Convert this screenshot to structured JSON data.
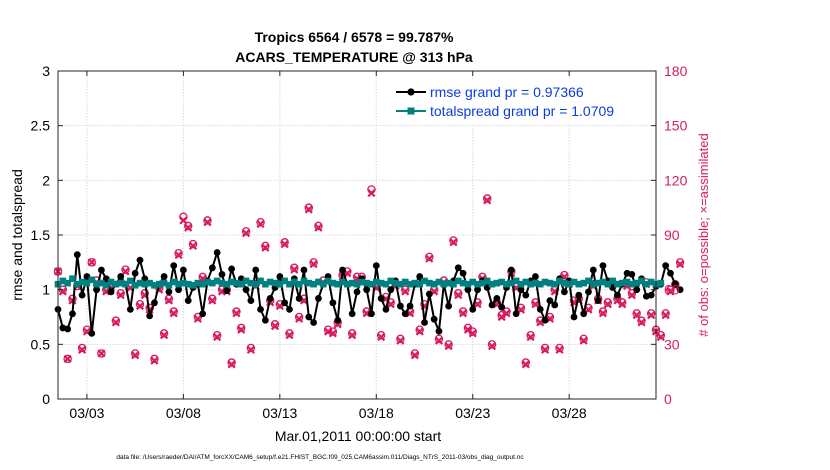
{
  "chart_data": {
    "type": "line",
    "title": "Tropics 6564 / 6578 = 99.787%",
    "subtitle": "ACARS_TEMPERATURE @ 313 hPa",
    "xlabel": "Mar.01,2011 00:00:00 start",
    "ylabel": "rmse and totalspread",
    "ylabel_right": "# of obs: o=possible; ×=assimilated",
    "footnote": "data file: /Users/raeder/DAI/ATM_forcXX/CAM6_setup/f.e21.FHIST_BGC.f09_025.CAM6assim.011/Diags_NTrS_2011-03/obs_diag_output.nc",
    "xlim": [
      1.5,
      32.5
    ],
    "ylim": [
      0,
      3
    ],
    "ylim_right": [
      0,
      180
    ],
    "x_tick_values": [
      3,
      8,
      13,
      18,
      23,
      28
    ],
    "x_tick_labels": [
      "03/03",
      "03/08",
      "03/13",
      "03/18",
      "03/23",
      "03/28"
    ],
    "y_tick_labels": [
      "0",
      "0.5",
      "1",
      "1.5",
      "2",
      "2.5",
      "3"
    ],
    "y_right_tick_labels": [
      "0",
      "30",
      "60",
      "90",
      "120",
      "150",
      "180"
    ],
    "colors": {
      "rmse": "#000000",
      "spread": "#00807f",
      "obs": "#d81b60",
      "legend_text": "#0b3de0"
    },
    "series": [
      {
        "name": "rmse grand pr = 0.97366",
        "color": "#000000",
        "x_start": 1.5,
        "x_step": 0.25,
        "values": [
          0.82,
          0.65,
          0.64,
          0.78,
          1.32,
          0.95,
          1.12,
          0.6,
          1.0,
          1.18,
          1.1,
          0.98,
          1.05,
          1.12,
          1.05,
          0.82,
          1.15,
          1.27,
          1.1,
          0.76,
          0.88,
          1.05,
          1.12,
          0.98,
          1.22,
          1.0,
          1.18,
          0.9,
          1.02,
          1.05,
          0.78,
          1.08,
          1.2,
          1.34,
          1.14,
          0.99,
          1.19,
          1.05,
          1.1,
          1.0,
          0.9,
          1.18,
          0.82,
          0.72,
          0.92,
          1.02,
          1.12,
          0.88,
          0.82,
          1.1,
          0.92,
          1.18,
          0.75,
          0.7,
          0.92,
          1.05,
          1.12,
          0.88,
          0.72,
          1.18,
          1.05,
          0.78,
          0.98,
          1.1,
          1.0,
          0.78,
          1.22,
          0.92,
          0.82,
          1.0,
          1.08,
          0.85,
          0.78,
          0.85,
          1.05,
          1.12,
          0.7,
          0.96,
          0.73,
          0.62,
          1.05,
          0.85,
          1.08,
          1.2,
          1.15,
          1.0,
          0.82,
          1.0,
          1.08,
          1.02,
          0.86,
          0.92,
          0.84,
          1.02,
          1.18,
          0.78,
          1.0,
          0.95,
          1.08,
          1.12,
          0.82,
          0.72,
          0.9,
          0.86,
          1.1,
          0.98,
          1.08,
          0.75,
          0.95,
          0.78,
          0.98,
          1.18,
          0.9,
          1.22,
          1.08,
          1.02,
          0.95,
          1.05,
          1.15,
          1.14,
          1.0,
          1.1,
          0.94,
          0.95,
          1.03,
          1.05,
          1.22,
          1.15,
          1.05,
          1.0
        ]
      },
      {
        "name": "totalspread grand pr = 1.0709",
        "color": "#00807f",
        "x_start": 1.5,
        "x_step": 0.25,
        "values": [
          1.05,
          1.08,
          1.06,
          1.1,
          1.05,
          1.07,
          1.06,
          1.09,
          1.05,
          1.06,
          1.04,
          1.07,
          1.05,
          1.06,
          1.05,
          1.08,
          1.04,
          1.06,
          1.05,
          1.06,
          1.04,
          1.05,
          1.06,
          1.04,
          1.07,
          1.05,
          1.06,
          1.05,
          1.04,
          1.06,
          1.05,
          1.07,
          1.06,
          1.08,
          1.06,
          1.05,
          1.07,
          1.06,
          1.05,
          1.08,
          1.06,
          1.05,
          1.08,
          1.05,
          1.07,
          1.06,
          1.05,
          1.08,
          1.05,
          1.07,
          1.05,
          1.08,
          1.06,
          1.05,
          1.07,
          1.05,
          1.08,
          1.06,
          1.05,
          1.07,
          1.05,
          1.06,
          1.05,
          1.07,
          1.06,
          1.05,
          1.07,
          1.06,
          1.05,
          1.08,
          1.06,
          1.05,
          1.07,
          1.05,
          1.06,
          1.05,
          1.08,
          1.06,
          1.05,
          1.07,
          1.05,
          1.06,
          1.05,
          1.08,
          1.06,
          1.05,
          1.07,
          1.05,
          1.06,
          1.08,
          1.05,
          1.06,
          1.07,
          1.05,
          1.06,
          1.08,
          1.05,
          1.07,
          1.05,
          1.06,
          1.05,
          1.07,
          1.06,
          1.05,
          1.08,
          1.06,
          1.05,
          1.07,
          1.05,
          1.06,
          1.08,
          1.05,
          1.06,
          1.07,
          1.05,
          1.08,
          1.05,
          1.06,
          1.07,
          1.05,
          1.06,
          1.08,
          1.05,
          1.07,
          1.05,
          1.06
        ]
      }
    ],
    "obs_possible": {
      "marker": "circle",
      "color": "#d81b60",
      "x_start": 1.5,
      "x_step": 0.25,
      "values": [
        70,
        60,
        22,
        55,
        62,
        28,
        38,
        75,
        65,
        25,
        60,
        62,
        43,
        58,
        71,
        62,
        25,
        52,
        58,
        50,
        22,
        61,
        36,
        55,
        48,
        80,
        100,
        95,
        85,
        45,
        67,
        98,
        55,
        35,
        60,
        60,
        20,
        48,
        39,
        92,
        28,
        63,
        97,
        84,
        54,
        41,
        52,
        86,
        36,
        72,
        45,
        55,
        105,
        75,
        95,
        65,
        38,
        37,
        42,
        68,
        70,
        36,
        67,
        67,
        48,
        115,
        62,
        35,
        56,
        53,
        63,
        33,
        60,
        48,
        25,
        38,
        52,
        78,
        60,
        33,
        65,
        30,
        87,
        58,
        48,
        39,
        37,
        53,
        67,
        110,
        30,
        53,
        46,
        48,
        70,
        62,
        50,
        20,
        35,
        53,
        43,
        28,
        45,
        60,
        28,
        68,
        64,
        54,
        55,
        33,
        50,
        63,
        55,
        48,
        53,
        64,
        55,
        53,
        63,
        58,
        47,
        43,
        64,
        47,
        38,
        35,
        47,
        60,
        63,
        75
      ]
    },
    "obs_assimilated": {
      "marker": "x",
      "color": "#d81b60",
      "x_start": 1.5,
      "x_step": 0.25,
      "values": [
        70,
        59,
        22,
        54,
        62,
        27,
        37,
        75,
        64,
        25,
        59,
        61,
        42,
        57,
        70,
        61,
        24,
        51,
        57,
        49,
        21,
        60,
        35,
        54,
        47,
        79,
        98,
        94,
        84,
        44,
        66,
        97,
        54,
        34,
        59,
        59,
        19,
        47,
        38,
        91,
        27,
        62,
        96,
        83,
        53,
        40,
        51,
        85,
        35,
        71,
        44,
        54,
        104,
        74,
        94,
        64,
        37,
        36,
        41,
        67,
        69,
        35,
        66,
        66,
        47,
        113,
        61,
        34,
        55,
        52,
        62,
        32,
        59,
        47,
        24,
        37,
        51,
        77,
        59,
        32,
        64,
        29,
        86,
        57,
        47,
        38,
        36,
        52,
        66,
        109,
        29,
        52,
        45,
        47,
        69,
        61,
        49,
        19,
        34,
        52,
        42,
        27,
        44,
        59,
        27,
        67,
        63,
        53,
        54,
        32,
        49,
        62,
        54,
        47,
        52,
        63,
        54,
        52,
        62,
        57,
        46,
        42,
        63,
        46,
        37,
        34,
        46,
        59,
        62,
        74
      ]
    }
  }
}
